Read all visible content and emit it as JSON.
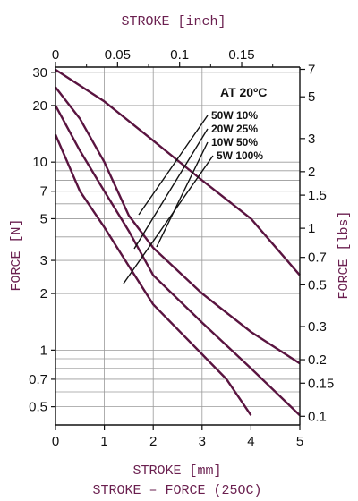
{
  "chart_data": {
    "type": "line",
    "title": "",
    "xlabel_bottom": "STROKE [mm]",
    "xlabel_top": "STROKE [inch]",
    "ylabel_left": "FORCE [N]",
    "ylabel_right": "FORCE [lbs]",
    "caption": "STROKE – FORCE (25OC)",
    "note": "AT 20ºC",
    "x_scale": "linear",
    "y_scale": "log",
    "xlim": [
      0,
      5
    ],
    "ylim": [
      0.4,
      32
    ],
    "grid": true,
    "legend_placement": "top-right, with leader lines to curves",
    "line_color": "#5a1440",
    "label_color": "#6a1f4f",
    "x_ticks": [
      "0",
      "1",
      "2",
      "3",
      "4",
      "5"
    ],
    "x_ticks_top": [
      "0",
      "0.05",
      "0.1",
      "0.15"
    ],
    "y_ticks_left": [
      "0.5",
      "0.7",
      "1",
      "2",
      "3",
      "5",
      "7",
      "10",
      "20",
      "30"
    ],
    "y_ticks_right": [
      "0.1",
      "0.15",
      "0.2",
      "0.3",
      "0.5",
      "0.7",
      "1",
      "1.5",
      "2",
      "3",
      "5",
      "7"
    ],
    "series": [
      {
        "name": "50W 10%",
        "x": [
          0,
          1,
          2,
          3,
          4,
          5
        ],
        "y": [
          31,
          21,
          13,
          8,
          5,
          2.5
        ]
      },
      {
        "name": "20W 25%",
        "x": [
          0,
          0.5,
          1,
          1.5,
          2,
          3,
          4,
          5
        ],
        "y": [
          25,
          17,
          10,
          5.2,
          3.5,
          2,
          1.25,
          0.85
        ]
      },
      {
        "name": "10W 50%",
        "x": [
          0,
          0.5,
          1,
          1.5,
          2,
          3,
          4,
          4.5,
          5
        ],
        "y": [
          20,
          11.5,
          7,
          4.3,
          2.5,
          1.4,
          0.8,
          0.6,
          0.45
        ]
      },
      {
        "name": "5W 100%",
        "x": [
          0,
          0.5,
          1,
          1.5,
          2,
          3,
          3.5,
          4
        ],
        "y": [
          14,
          7,
          4.5,
          2.8,
          1.75,
          0.95,
          0.7,
          0.45
        ]
      }
    ]
  }
}
